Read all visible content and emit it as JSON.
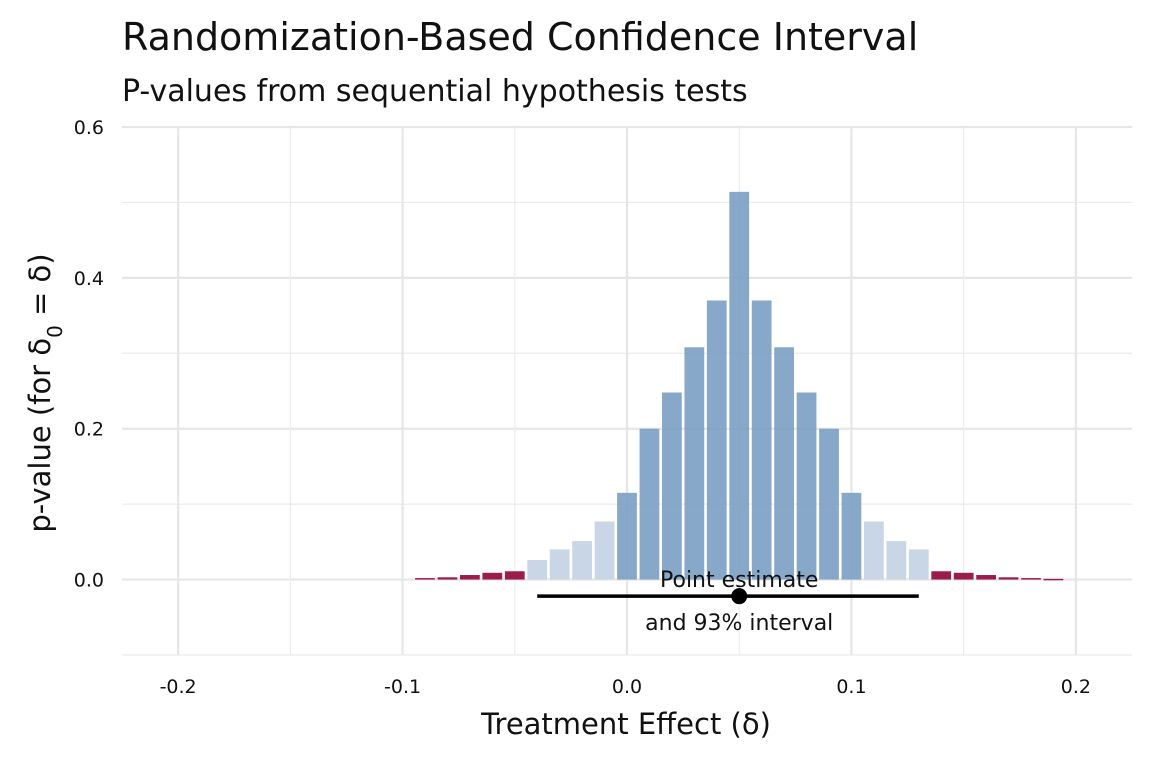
{
  "chart_data": {
    "type": "bar",
    "title": "Randomization-Based Confidence Interval",
    "subtitle": "P-values from sequential hypothesis tests",
    "xlabel": "Treatment Effect (δ)",
    "ylabel": {
      "prefix": "p-value (for δ",
      "subscript": "0",
      "suffix": " = δ)"
    },
    "xlim": [
      -0.225,
      0.225
    ],
    "ylim": [
      -0.1,
      0.6
    ],
    "x_ticks": [
      {
        "value": -0.2,
        "label": "-0.2"
      },
      {
        "value": -0.1,
        "label": "-0.1"
      },
      {
        "value": 0.0,
        "label": "0.0"
      },
      {
        "value": 0.1,
        "label": "0.1"
      },
      {
        "value": 0.2,
        "label": "0.2"
      }
    ],
    "y_ticks": [
      {
        "value": 0.0,
        "label": "0.0"
      },
      {
        "value": 0.2,
        "label": "0.2"
      },
      {
        "value": 0.4,
        "label": "0.4"
      },
      {
        "value": 0.6,
        "label": "0.6"
      }
    ],
    "grid": true,
    "colors": {
      "outside": "#9b1b4b",
      "edge": "#c8d6e6",
      "inside": "#7a9ec2",
      "interval": "#000000"
    },
    "bars": [
      {
        "x": -0.09,
        "p": 0.002,
        "group": "outside"
      },
      {
        "x": -0.08,
        "p": 0.003,
        "group": "outside"
      },
      {
        "x": -0.07,
        "p": 0.006,
        "group": "outside"
      },
      {
        "x": -0.06,
        "p": 0.009,
        "group": "outside"
      },
      {
        "x": -0.05,
        "p": 0.011,
        "group": "outside"
      },
      {
        "x": -0.04,
        "p": 0.026,
        "group": "edge"
      },
      {
        "x": -0.03,
        "p": 0.04,
        "group": "edge"
      },
      {
        "x": -0.02,
        "p": 0.051,
        "group": "edge"
      },
      {
        "x": -0.01,
        "p": 0.077,
        "group": "edge"
      },
      {
        "x": 0.0,
        "p": 0.115,
        "group": "inside"
      },
      {
        "x": 0.01,
        "p": 0.2,
        "group": "inside"
      },
      {
        "x": 0.02,
        "p": 0.248,
        "group": "inside"
      },
      {
        "x": 0.03,
        "p": 0.308,
        "group": "inside"
      },
      {
        "x": 0.04,
        "p": 0.37,
        "group": "inside"
      },
      {
        "x": 0.05,
        "p": 0.514,
        "group": "inside"
      },
      {
        "x": 0.06,
        "p": 0.37,
        "group": "inside"
      },
      {
        "x": 0.07,
        "p": 0.308,
        "group": "inside"
      },
      {
        "x": 0.08,
        "p": 0.248,
        "group": "inside"
      },
      {
        "x": 0.09,
        "p": 0.2,
        "group": "inside"
      },
      {
        "x": 0.1,
        "p": 0.115,
        "group": "inside"
      },
      {
        "x": 0.11,
        "p": 0.077,
        "group": "edge"
      },
      {
        "x": 0.12,
        "p": 0.051,
        "group": "edge"
      },
      {
        "x": 0.13,
        "p": 0.04,
        "group": "edge"
      },
      {
        "x": 0.14,
        "p": 0.011,
        "group": "outside"
      },
      {
        "x": 0.15,
        "p": 0.009,
        "group": "outside"
      },
      {
        "x": 0.16,
        "p": 0.006,
        "group": "outside"
      },
      {
        "x": 0.17,
        "p": 0.003,
        "group": "outside"
      },
      {
        "x": 0.18,
        "p": 0.002,
        "group": "outside"
      },
      {
        "x": 0.19,
        "p": 0.001,
        "group": "outside"
      }
    ],
    "point_estimate": 0.05,
    "interval": {
      "low": -0.04,
      "high": 0.13,
      "y": -0.022
    },
    "annotation": {
      "line1": "Point estimate",
      "line2": "and 93% interval",
      "x": 0.05
    }
  }
}
